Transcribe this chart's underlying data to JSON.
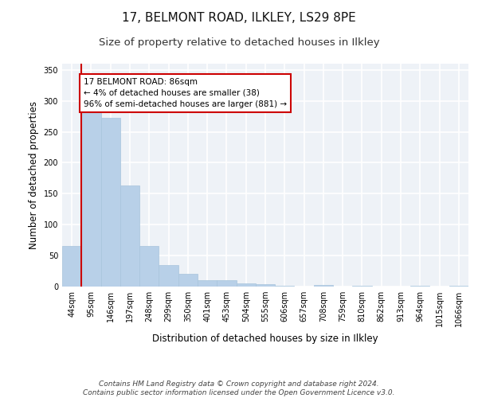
{
  "title_line1": "17, BELMONT ROAD, ILKLEY, LS29 8PE",
  "title_line2": "Size of property relative to detached houses in Ilkley",
  "xlabel": "Distribution of detached houses by size in Ilkley",
  "ylabel": "Number of detached properties",
  "categories": [
    "44sqm",
    "95sqm",
    "146sqm",
    "197sqm",
    "248sqm",
    "299sqm",
    "350sqm",
    "401sqm",
    "453sqm",
    "504sqm",
    "555sqm",
    "606sqm",
    "657sqm",
    "708sqm",
    "759sqm",
    "810sqm",
    "862sqm",
    "913sqm",
    "964sqm",
    "1015sqm",
    "1066sqm"
  ],
  "values": [
    65,
    283,
    272,
    163,
    65,
    35,
    20,
    10,
    10,
    5,
    4,
    1,
    0,
    3,
    0,
    1,
    0,
    0,
    1,
    0,
    1
  ],
  "bar_color": "#b8d0e8",
  "bar_edge_color": "#a8c4dc",
  "annotation_box_text": "17 BELMONT ROAD: 86sqm\n← 4% of detached houses are smaller (38)\n96% of semi-detached houses are larger (881) →",
  "annotation_box_color": "#ffffff",
  "annotation_box_edge_color": "#cc0000",
  "vline_color": "#cc0000",
  "ylim": [
    0,
    360
  ],
  "yticks": [
    0,
    50,
    100,
    150,
    200,
    250,
    300,
    350
  ],
  "footer_line1": "Contains HM Land Registry data © Crown copyright and database right 2024.",
  "footer_line2": "Contains public sector information licensed under the Open Government Licence v3.0.",
  "background_color": "#eef2f7",
  "grid_color": "#ffffff",
  "title_fontsize": 11,
  "subtitle_fontsize": 9.5,
  "axis_label_fontsize": 8.5,
  "tick_fontsize": 7,
  "footer_fontsize": 6.5
}
